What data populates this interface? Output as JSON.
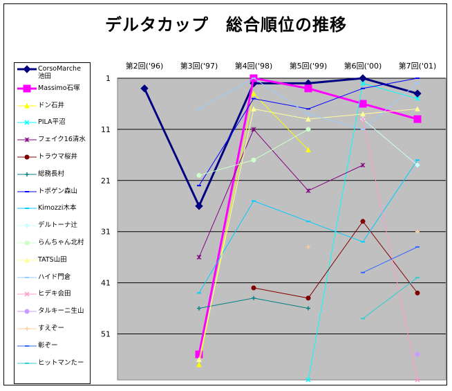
{
  "chart_data": {
    "type": "line",
    "title": "デルタカップ　総合順位の推移",
    "categories": [
      "第2回('96)",
      "第3回('97)",
      "第4回('98)",
      "第5回('99)",
      "第6回('00)",
      "第7回('01)"
    ],
    "y_ticks": [
      1,
      11,
      21,
      31,
      41,
      51
    ],
    "ylim": [
      1,
      60
    ],
    "y_inverted": true,
    "grid": true,
    "legend_position": "left",
    "plot_bg": "#c0c0c0",
    "series": [
      {
        "name": "CorsoMarche\n池田",
        "color": "#000080",
        "marker": "diamond",
        "width": 3,
        "values": [
          3,
          26,
          2,
          2,
          1,
          4
        ]
      },
      {
        "name": "Massimo石塚",
        "color": "#ff00ff",
        "marker": "square",
        "width": 3,
        "values": [
          null,
          55,
          1,
          3,
          6,
          9
        ]
      },
      {
        "name": "ドン石井",
        "color": "#ffff00",
        "marker": "triangle",
        "width": 1,
        "values": [
          null,
          57,
          4,
          15,
          null,
          null
        ]
      },
      {
        "name": "PILA平沼",
        "color": "#00ffff",
        "marker": "x",
        "width": 1,
        "values": [
          null,
          null,
          null,
          60,
          2,
          5
        ]
      },
      {
        "name": "フェイク16清水",
        "color": "#800080",
        "marker": "star",
        "width": 1,
        "values": [
          null,
          36,
          11,
          23,
          18,
          null
        ]
      },
      {
        "name": "トラウマ桜井",
        "color": "#800000",
        "marker": "circle",
        "width": 1,
        "values": [
          null,
          null,
          42,
          44,
          29,
          43
        ]
      },
      {
        "name": "総務長村",
        "color": "#008080",
        "marker": "plus",
        "width": 1,
        "values": [
          null,
          46,
          44,
          46,
          null,
          null
        ]
      },
      {
        "name": "トポゲン森山",
        "color": "#0000ff",
        "marker": "dash",
        "width": 1,
        "values": [
          null,
          22,
          5,
          7,
          3,
          1
        ]
      },
      {
        "name": "Kimozzi木本",
        "color": "#00ccff",
        "marker": "dash",
        "width": 1,
        "values": [
          null,
          43,
          25,
          29,
          33,
          17
        ]
      },
      {
        "name": "デルトーナ辻",
        "color": "#ccffff",
        "marker": "diamond",
        "width": 1,
        "values": [
          null,
          null,
          null,
          null,
          9,
          18
        ]
      },
      {
        "name": "らんちゃん北村",
        "color": "#ccffcc",
        "marker": "circle",
        "width": 1,
        "values": [
          null,
          20,
          17,
          11,
          null,
          null
        ]
      },
      {
        "name": "TATS山田",
        "color": "#ffff99",
        "marker": "triangle",
        "width": 1,
        "values": [
          null,
          56,
          7,
          9,
          8,
          7
        ]
      },
      {
        "name": "ハイド門倉",
        "color": "#99ccff",
        "marker": "dash",
        "width": 1,
        "values": [
          null,
          7,
          1,
          8,
          11,
          2
        ]
      },
      {
        "name": "ヒデキ会田",
        "color": "#ff99cc",
        "marker": "x",
        "width": 1,
        "values": [
          null,
          null,
          null,
          null,
          9,
          60
        ]
      },
      {
        "name": "タルキーニ生山",
        "color": "#cc99ff",
        "marker": "circle",
        "width": 1,
        "values": [
          null,
          null,
          null,
          null,
          null,
          55
        ]
      },
      {
        "name": "すえぞー",
        "color": "#ffcc99",
        "marker": "plus",
        "width": 1,
        "values": [
          null,
          null,
          null,
          34,
          null,
          31
        ]
      },
      {
        "name": "彰ぞー",
        "color": "#3366ff",
        "marker": "dash",
        "width": 1,
        "values": [
          null,
          null,
          null,
          null,
          39,
          34
        ]
      },
      {
        "name": "ヒットマンたー",
        "color": "#33cccc",
        "marker": "dash",
        "width": 1,
        "values": [
          null,
          null,
          null,
          null,
          48,
          40
        ]
      }
    ]
  }
}
